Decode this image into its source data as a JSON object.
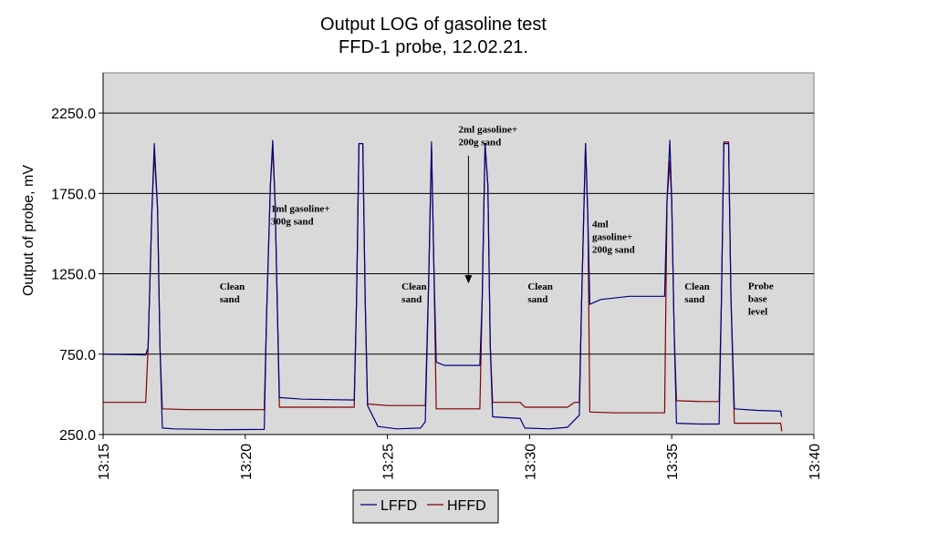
{
  "chart_data": {
    "type": "line",
    "title": [
      "Output LOG of gasoline test",
      "FFD-1 probe, 12.02.21."
    ],
    "ylabel": "Output of probe, mV",
    "xlabel": "",
    "ylim": [
      250,
      2500
    ],
    "xlim": [
      "13:15",
      "13:40"
    ],
    "yticks": [
      250,
      750,
      1250,
      1750,
      2250
    ],
    "ytick_labels": [
      "250.0",
      "750.0",
      "1250.0",
      "1750.0",
      "2250.0"
    ],
    "xticks": [
      "13:15",
      "13:20",
      "13:25",
      "13:30",
      "13:35",
      "13:40"
    ],
    "grid": "horizontal",
    "background": "#d9d9d9",
    "legend_position": "bottom-center",
    "series": [
      {
        "name": "LFFD",
        "color": "#000080",
        "points": [
          [
            "13:15:00",
            750
          ],
          [
            "13:16:30",
            745
          ],
          [
            "13:16:35",
            790
          ],
          [
            "13:16:43",
            1650
          ],
          [
            "13:16:48",
            2060
          ],
          [
            "13:16:55",
            1650
          ],
          [
            "13:17:00",
            800
          ],
          [
            "13:17:05",
            290
          ],
          [
            "13:17:30",
            285
          ],
          [
            "13:19:00",
            280
          ],
          [
            "13:20:40",
            282
          ],
          [
            "13:20:45",
            1000
          ],
          [
            "13:20:53",
            1800
          ],
          [
            "13:20:58",
            2080
          ],
          [
            "13:21:03",
            1700
          ],
          [
            "13:21:08",
            1000
          ],
          [
            "13:21:12",
            480
          ],
          [
            "13:22:00",
            470
          ],
          [
            "13:23:50",
            465
          ],
          [
            "13:23:55",
            1100
          ],
          [
            "13:24:00",
            2060
          ],
          [
            "13:24:08",
            2060
          ],
          [
            "13:24:13",
            1100
          ],
          [
            "13:24:18",
            430
          ],
          [
            "13:24:40",
            300
          ],
          [
            "13:25:20",
            285
          ],
          [
            "13:26:10",
            290
          ],
          [
            "13:26:20",
            330
          ],
          [
            "13:26:27",
            1200
          ],
          [
            "13:26:33",
            2070
          ],
          [
            "13:26:38",
            1300
          ],
          [
            "13:26:43",
            700
          ],
          [
            "13:27:00",
            680
          ],
          [
            "13:28:15",
            680
          ],
          [
            "13:28:20",
            1100
          ],
          [
            "13:28:26",
            2060
          ],
          [
            "13:28:32",
            1800
          ],
          [
            "13:28:37",
            800
          ],
          [
            "13:28:42",
            360
          ],
          [
            "13:29:40",
            350
          ],
          [
            "13:29:50",
            290
          ],
          [
            "13:30:40",
            285
          ],
          [
            "13:31:20",
            295
          ],
          [
            "13:31:35",
            340
          ],
          [
            "13:31:45",
            370
          ],
          [
            "13:31:50",
            1100
          ],
          [
            "13:31:58",
            2060
          ],
          [
            "13:32:03",
            1600
          ],
          [
            "13:32:07",
            1060
          ],
          [
            "13:32:30",
            1090
          ],
          [
            "13:33:30",
            1110
          ],
          [
            "13:34:45",
            1110
          ],
          [
            "13:34:50",
            1700
          ],
          [
            "13:34:56",
            2080
          ],
          [
            "13:35:00",
            1700
          ],
          [
            "13:35:05",
            900
          ],
          [
            "13:35:10",
            320
          ],
          [
            "13:36:00",
            315
          ],
          [
            "13:36:40",
            315
          ],
          [
            "13:36:45",
            1100
          ],
          [
            "13:36:50",
            2060
          ],
          [
            "13:37:00",
            2060
          ],
          [
            "13:37:05",
            1100
          ],
          [
            "13:37:12",
            410
          ],
          [
            "13:38:00",
            400
          ],
          [
            "13:38:50",
            395
          ],
          [
            "13:38:52",
            360
          ]
        ]
      },
      {
        "name": "HFFD",
        "color": "#800000",
        "points": [
          [
            "13:15:00",
            450
          ],
          [
            "13:16:30",
            450
          ],
          [
            "13:16:35",
            790
          ],
          [
            "13:16:43",
            1650
          ],
          [
            "13:16:48",
            2000
          ],
          [
            "13:16:55",
            1650
          ],
          [
            "13:17:00",
            800
          ],
          [
            "13:17:05",
            410
          ],
          [
            "13:18:00",
            405
          ],
          [
            "13:20:40",
            405
          ],
          [
            "13:20:45",
            1000
          ],
          [
            "13:20:53",
            1800
          ],
          [
            "13:20:58",
            2030
          ],
          [
            "13:21:03",
            1700
          ],
          [
            "13:21:08",
            1000
          ],
          [
            "13:21:12",
            420
          ],
          [
            "13:22:30",
            420
          ],
          [
            "13:23:50",
            420
          ],
          [
            "13:23:55",
            1100
          ],
          [
            "13:24:00",
            2060
          ],
          [
            "13:24:08",
            2060
          ],
          [
            "13:24:13",
            1100
          ],
          [
            "13:24:18",
            440
          ],
          [
            "13:25:00",
            430
          ],
          [
            "13:26:20",
            430
          ],
          [
            "13:26:27",
            1200
          ],
          [
            "13:26:33",
            2040
          ],
          [
            "13:26:38",
            1300
          ],
          [
            "13:26:43",
            410
          ],
          [
            "13:27:30",
            410
          ],
          [
            "13:28:15",
            410
          ],
          [
            "13:28:20",
            1100
          ],
          [
            "13:28:26",
            2060
          ],
          [
            "13:28:32",
            1800
          ],
          [
            "13:28:37",
            800
          ],
          [
            "13:28:42",
            450
          ],
          [
            "13:29:40",
            450
          ],
          [
            "13:29:50",
            420
          ],
          [
            "13:31:20",
            420
          ],
          [
            "13:31:35",
            450
          ],
          [
            "13:31:45",
            450
          ],
          [
            "13:31:50",
            1100
          ],
          [
            "13:31:58",
            2060
          ],
          [
            "13:32:03",
            1600
          ],
          [
            "13:32:07",
            390
          ],
          [
            "13:33:00",
            385
          ],
          [
            "13:34:45",
            385
          ],
          [
            "13:34:50",
            1700
          ],
          [
            "13:34:56",
            1950
          ],
          [
            "13:35:00",
            1700
          ],
          [
            "13:35:05",
            900
          ],
          [
            "13:35:10",
            460
          ],
          [
            "13:36:00",
            455
          ],
          [
            "13:36:40",
            455
          ],
          [
            "13:36:45",
            1100
          ],
          [
            "13:36:50",
            2070
          ],
          [
            "13:37:00",
            2070
          ],
          [
            "13:37:05",
            1100
          ],
          [
            "13:37:12",
            320
          ],
          [
            "13:38:00",
            320
          ],
          [
            "13:38:50",
            320
          ],
          [
            "13:38:52",
            270
          ]
        ]
      }
    ],
    "annotations": [
      {
        "lines": [
          "Clean",
          "sand"
        ],
        "t": "13:19:06",
        "v": 1150
      },
      {
        "lines": [
          "1ml gasoline+",
          "300g sand"
        ],
        "t": "13:20:54",
        "v": 1635
      },
      {
        "lines": [
          "Clean",
          "sand"
        ],
        "t": "13:25:30",
        "v": 1150
      },
      {
        "lines": [
          "2ml gasoline+",
          "200g sand"
        ],
        "t": "13:27:30",
        "v": 2130
      },
      {
        "lines": [
          "Clean",
          "sand"
        ],
        "t": "13:29:56",
        "v": 1150
      },
      {
        "lines": [
          "4ml",
          "gasoline+",
          "200g sand"
        ],
        "t": "13:32:12",
        "v": 1540
      },
      {
        "lines": [
          "Clean",
          "sand"
        ],
        "t": "13:35:27",
        "v": 1150
      },
      {
        "lines": [
          "Probe",
          "base",
          "level"
        ],
        "t": "13:37:41",
        "v": 1155
      }
    ],
    "arrow": {
      "t": "13:27:51",
      "from_v": 1985,
      "to_v": 1190
    }
  }
}
